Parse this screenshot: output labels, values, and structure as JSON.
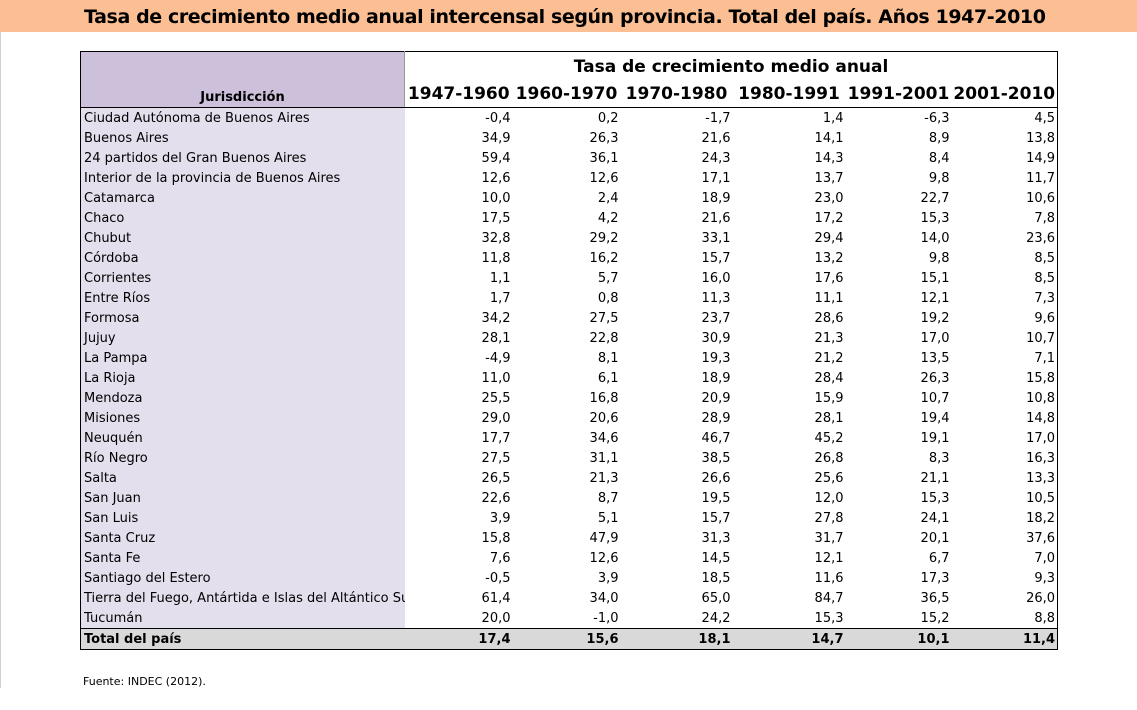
{
  "title": "Tasa de crecimiento medio anual intercensal según provincia. Total del país. Años 1947-2010",
  "table": {
    "name_header": "Jurisdicción",
    "group_header": "Tasa de crecimiento medio anual",
    "years": [
      "1947-1960",
      "1960-1970",
      "1970-1980",
      "1980-1991",
      "1991-2001",
      "2001-2010"
    ],
    "rows": [
      {
        "name": "Ciudad Autónoma de Buenos Aires",
        "values": [
          "-0,4",
          "0,2",
          "-1,7",
          "1,4",
          "-6,3",
          "4,5"
        ]
      },
      {
        "name": "Buenos Aires",
        "values": [
          "34,9",
          "26,3",
          "21,6",
          "14,1",
          "8,9",
          "13,8"
        ]
      },
      {
        "name": "24 partidos del Gran Buenos Aires",
        "values": [
          "59,4",
          "36,1",
          "24,3",
          "14,3",
          "8,4",
          "14,9"
        ]
      },
      {
        "name": "Interior de la provincia de Buenos Aires",
        "values": [
          "12,6",
          "12,6",
          "17,1",
          "13,7",
          "9,8",
          "11,7"
        ]
      },
      {
        "name": "Catamarca",
        "values": [
          "10,0",
          "2,4",
          "18,9",
          "23,0",
          "22,7",
          "10,6"
        ]
      },
      {
        "name": "Chaco",
        "values": [
          "17,5",
          "4,2",
          "21,6",
          "17,2",
          "15,3",
          "7,8"
        ]
      },
      {
        "name": "Chubut",
        "values": [
          "32,8",
          "29,2",
          "33,1",
          "29,4",
          "14,0",
          "23,6"
        ]
      },
      {
        "name": "Córdoba",
        "values": [
          "11,8",
          "16,2",
          "15,7",
          "13,2",
          "9,8",
          "8,5"
        ]
      },
      {
        "name": "Corrientes",
        "values": [
          "1,1",
          "5,7",
          "16,0",
          "17,6",
          "15,1",
          "8,5"
        ]
      },
      {
        "name": "Entre Ríos",
        "values": [
          "1,7",
          "0,8",
          "11,3",
          "11,1",
          "12,1",
          "7,3"
        ]
      },
      {
        "name": "Formosa",
        "values": [
          "34,2",
          "27,5",
          "23,7",
          "28,6",
          "19,2",
          "9,6"
        ]
      },
      {
        "name": "Jujuy",
        "values": [
          "28,1",
          "22,8",
          "30,9",
          "21,3",
          "17,0",
          "10,7"
        ]
      },
      {
        "name": "La Pampa",
        "values": [
          "-4,9",
          "8,1",
          "19,3",
          "21,2",
          "13,5",
          "7,1"
        ]
      },
      {
        "name": "La Rioja",
        "values": [
          "11,0",
          "6,1",
          "18,9",
          "28,4",
          "26,3",
          "15,8"
        ]
      },
      {
        "name": "Mendoza",
        "values": [
          "25,5",
          "16,8",
          "20,9",
          "15,9",
          "10,7",
          "10,8"
        ]
      },
      {
        "name": "Misiones",
        "values": [
          "29,0",
          "20,6",
          "28,9",
          "28,1",
          "19,4",
          "14,8"
        ]
      },
      {
        "name": "Neuquén",
        "values": [
          "17,7",
          "34,6",
          "46,7",
          "45,2",
          "19,1",
          "17,0"
        ]
      },
      {
        "name": "Río Negro",
        "values": [
          "27,5",
          "31,1",
          "38,5",
          "26,8",
          "8,3",
          "16,3"
        ]
      },
      {
        "name": "Salta",
        "values": [
          "26,5",
          "21,3",
          "26,6",
          "25,6",
          "21,1",
          "13,3"
        ]
      },
      {
        "name": "San Juan",
        "values": [
          "22,6",
          "8,7",
          "19,5",
          "12,0",
          "15,3",
          "10,5"
        ]
      },
      {
        "name": "San Luis",
        "values": [
          "3,9",
          "5,1",
          "15,7",
          "27,8",
          "24,1",
          "18,2"
        ]
      },
      {
        "name": "Santa Cruz",
        "values": [
          "15,8",
          "47,9",
          "31,3",
          "31,7",
          "20,1",
          "37,6"
        ]
      },
      {
        "name": "Santa Fe",
        "values": [
          "7,6",
          "12,6",
          "14,5",
          "12,1",
          "6,7",
          "7,0"
        ]
      },
      {
        "name": "Santiago del Estero",
        "values": [
          "-0,5",
          "3,9",
          "18,5",
          "11,6",
          "17,3",
          "9,3"
        ]
      },
      {
        "name": "Tierra del Fuego, Antártida e Islas del Altántico Sur",
        "values": [
          "61,4",
          "34,0",
          "65,0",
          "84,7",
          "36,5",
          "26,0"
        ]
      },
      {
        "name": "Tucumán",
        "values": [
          "20,0",
          "-1,0",
          "24,2",
          "15,3",
          "15,2",
          "8,8"
        ]
      }
    ],
    "total": {
      "name": "Total del país",
      "values": [
        "17,4",
        "15,6",
        "18,1",
        "14,7",
        "10,1",
        "11,4"
      ]
    }
  },
  "source": "Fuente: INDEC (2012).",
  "colors": {
    "title_band": "#fbbf93",
    "name_header_bg": "#ccc0da",
    "name_column_bg": "#e4dfec",
    "total_row_bg": "#d9d9d9"
  }
}
